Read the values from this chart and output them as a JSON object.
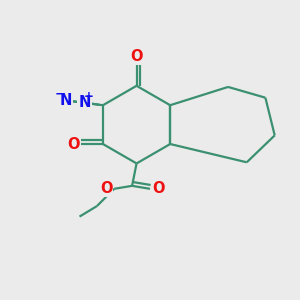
{
  "bg_color": "#ebebeb",
  "bond_color": "#3a9070",
  "bond_width": 1.6,
  "atom_colors": {
    "O": "#ee1111",
    "N": "#1111ee",
    "C": "#3a9070"
  },
  "font_size": 10.5,
  "small_font_size": 7.5,
  "fig_size": [
    3.0,
    3.0
  ],
  "dpi": 100
}
